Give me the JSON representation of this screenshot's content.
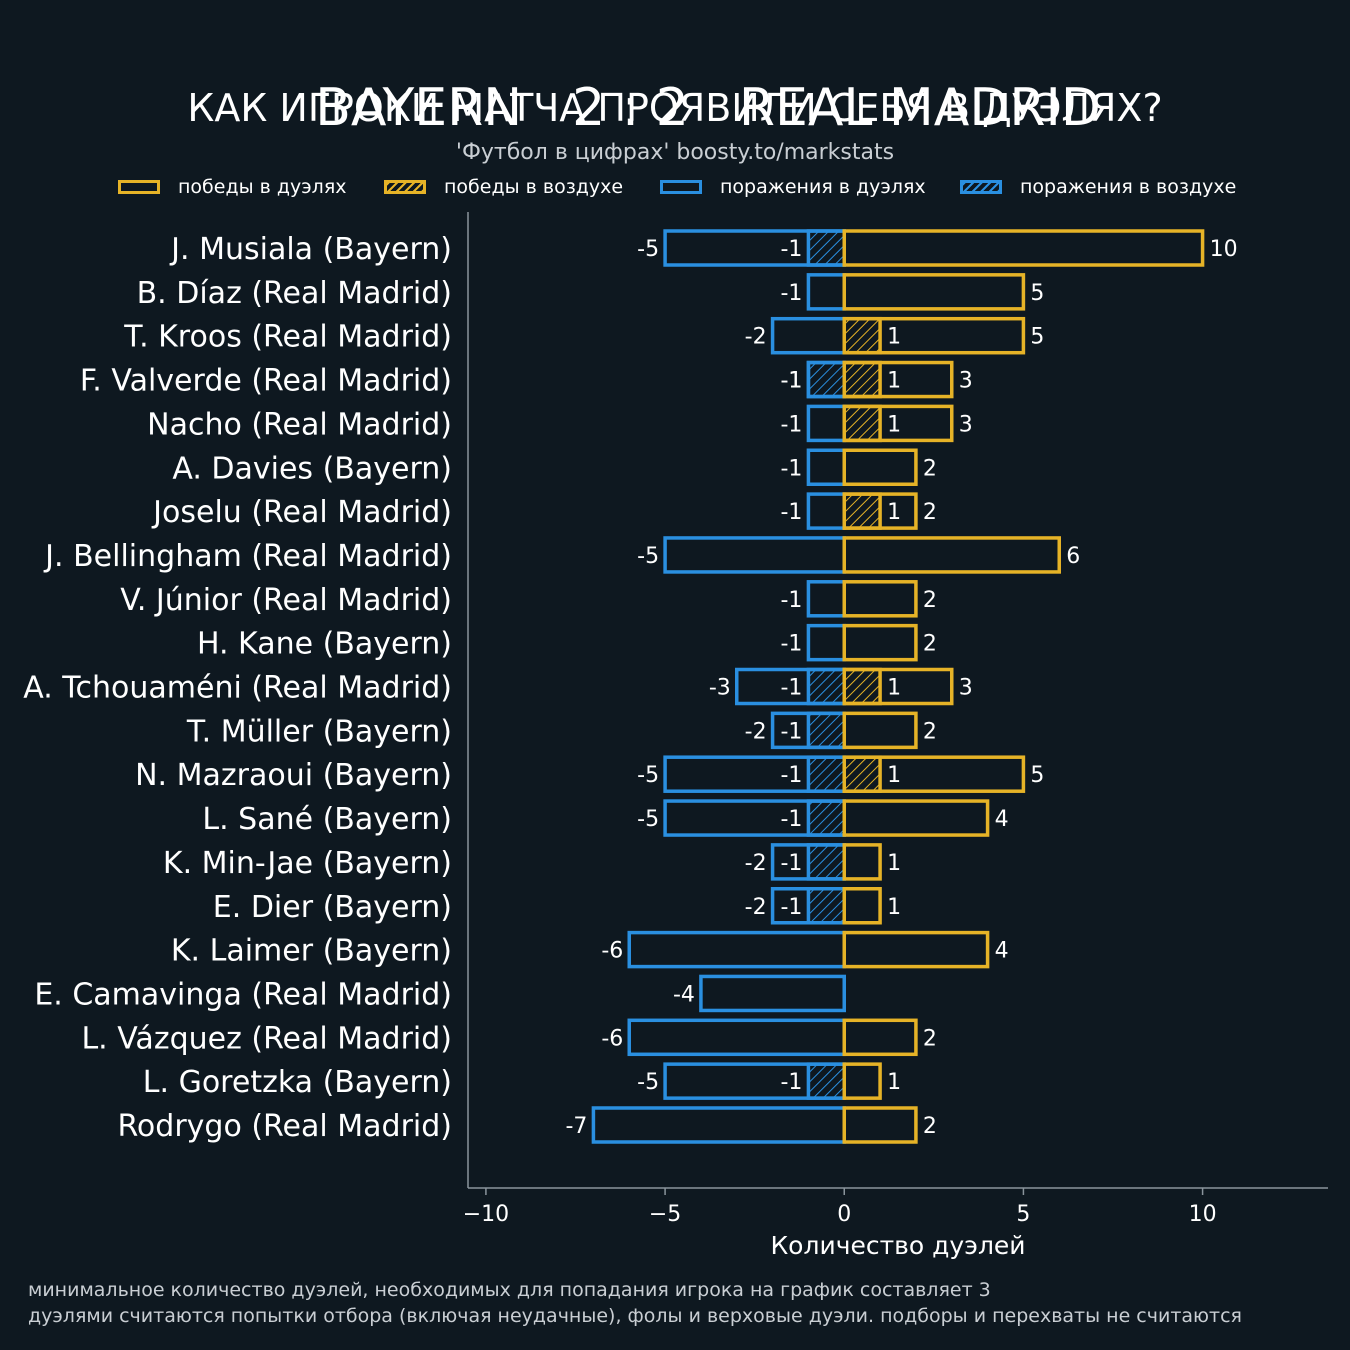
{
  "header": {
    "home": "BAYERN",
    "score": "2 : 2",
    "away": "REAL MADRID",
    "subtitle": "КАК ИГРОКИ МАТЧА ПРОЯВИЛИ СЕБЯ В ДУЭЛЯХ?",
    "credit": "'Футбол в цифрах' boosty.to/markstats"
  },
  "legend": {
    "items": [
      {
        "label": "победы в дуэлях",
        "color": "#e6b327",
        "hatched": false
      },
      {
        "label": "победы в воздухе",
        "color": "#e6b327",
        "hatched": true
      },
      {
        "label": "поражения в дуэлях",
        "color": "#2a8fe0",
        "hatched": false
      },
      {
        "label": "поражения в воздухе",
        "color": "#2a8fe0",
        "hatched": true
      }
    ]
  },
  "footnotes": {
    "line1": "минимальное количество дуэлей, необходимых для попадания игрока на график составляет 3",
    "line2": "дуэлями считаются попытки отбора (включая неудачные), фолы и верховые дуэли. подборы и перехваты не считаются"
  },
  "colors": {
    "background": "#0e1820",
    "wins": "#e6b327",
    "losses": "#2a8fe0",
    "axis": "#8a949c"
  },
  "chart_data": {
    "type": "bar",
    "orientation": "horizontal",
    "xlabel": "Количество дуэлей",
    "xlim": [
      -10.5,
      13.5
    ],
    "xticks": [
      -10,
      -5,
      0,
      5,
      10
    ],
    "xtick_labels": [
      "−10",
      "−5",
      "0",
      "5",
      "10"
    ],
    "grid": false,
    "categories": [
      "J. Musiala (Bayern)",
      "B. Díaz (Real Madrid)",
      "T. Kroos (Real Madrid)",
      "F. Valverde (Real Madrid)",
      "Nacho (Real Madrid)",
      "A. Davies (Bayern)",
      "Joselu (Real Madrid)",
      "J. Bellingham (Real Madrid)",
      "V. Júnior (Real Madrid)",
      "H. Kane (Bayern)",
      "A. Tchouaméni (Real Madrid)",
      "T. Müller (Bayern)",
      "N. Mazraoui (Bayern)",
      "L. Sané (Bayern)",
      "K. Min-Jae (Bayern)",
      "E. Dier (Bayern)",
      "K. Laimer (Bayern)",
      "E. Camavinga (Real Madrid)",
      "L. Vázquez (Real Madrid)",
      "L. Goretzka (Bayern)",
      "Rodrygo (Real Madrid)"
    ],
    "series": [
      {
        "name": "победы в дуэлях",
        "values": [
          10,
          5,
          5,
          3,
          3,
          2,
          2,
          6,
          2,
          2,
          3,
          2,
          5,
          4,
          1,
          1,
          4,
          0,
          2,
          1,
          2
        ]
      },
      {
        "name": "победы в воздухе",
        "values": [
          0,
          0,
          1,
          1,
          1,
          0,
          1,
          0,
          0,
          0,
          1,
          0,
          1,
          0,
          0,
          0,
          0,
          0,
          0,
          0,
          0
        ]
      },
      {
        "name": "поражения в дуэлях",
        "values": [
          -5,
          -1,
          -2,
          -1,
          -1,
          -1,
          -1,
          -5,
          -1,
          -1,
          -3,
          -2,
          -5,
          -5,
          -2,
          -2,
          -6,
          -4,
          -6,
          -5,
          -7
        ]
      },
      {
        "name": "поражения в воздухе",
        "values": [
          -1,
          0,
          0,
          -1,
          0,
          0,
          0,
          0,
          0,
          0,
          -1,
          -1,
          -1,
          -1,
          -1,
          -1,
          0,
          0,
          0,
          -1,
          0
        ]
      }
    ]
  }
}
